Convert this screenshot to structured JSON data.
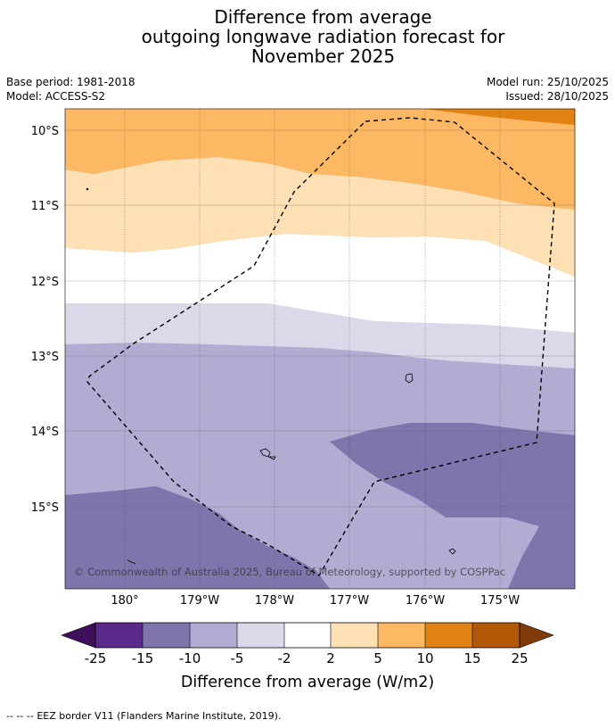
{
  "title": {
    "line1": "Difference from average",
    "line2": "outgoing longwave radiation forecast for",
    "line3": "November 2025"
  },
  "meta": {
    "base_period": "Base period: 1981-2018",
    "model": "Model: ACCESS-S2",
    "model_run": "Model run: 25/10/2025",
    "issued": "Issued: 28/10/2025"
  },
  "map": {
    "lat_labels": [
      "10°S",
      "11°S",
      "12°S",
      "13°S",
      "14°S",
      "15°S"
    ],
    "lon_labels": [
      "180°",
      "179°W",
      "178°W",
      "177°W",
      "176°W",
      "175°W"
    ],
    "copyright": "© Commonwealth of Australia 2025, Bureau of Meteorology, supported by COSPPac"
  },
  "colorbar": {
    "ticks": [
      "-25",
      "-15",
      "-10",
      "-5",
      "-2",
      "2",
      "5",
      "10",
      "15",
      "25"
    ],
    "label": "Difference from average (W/m2)",
    "colors": {
      "below_-25": "#3d0f5c",
      "-25_-15": "#5a2a8a",
      "-15_-10": "#7f74ac",
      "-10_-5": "#b2acd3",
      "-5_-2": "#d9d9ea",
      "-2_2": "#ffffff",
      "2_5": "#fee0b5",
      "5_10": "#fdb863",
      "10_15": "#e08214",
      "15_25": "#b35806",
      "above_25": "#7f3b08"
    }
  },
  "footer": {
    "legend_symbol": "--  --  --",
    "legend_text": "EEZ border V11 (Flanders Marine Institute, 2019)."
  }
}
